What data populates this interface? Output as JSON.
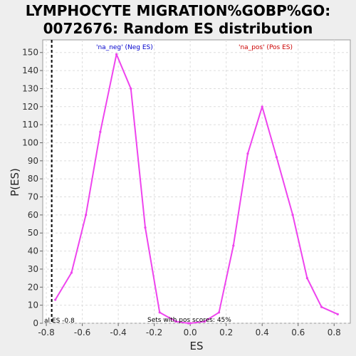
{
  "chart_data": {
    "type": "line",
    "title_lines": [
      "LYMPHOCYTE MIGRATION%GOBP%GO:",
      "0072676: Random ES distribution"
    ],
    "xlabel": "ES",
    "ylabel": "P(ES)",
    "xlim": [
      -0.82,
      0.89
    ],
    "ylim": [
      0,
      157
    ],
    "x_ticks": [
      "-0.8",
      "-0.6",
      "-0.4",
      "-0.2",
      "0.0",
      "0.2",
      "0.4",
      "0.6",
      "0.8"
    ],
    "x_tick_values": [
      -0.8,
      -0.6,
      -0.4,
      -0.2,
      0.0,
      0.2,
      0.4,
      0.6,
      0.8
    ],
    "y_ticks": [
      "0",
      "10",
      "20",
      "30",
      "40",
      "50",
      "60",
      "70",
      "80",
      "90",
      "100",
      "110",
      "120",
      "130",
      "140",
      "150"
    ],
    "y_tick_values": [
      0,
      10,
      20,
      30,
      40,
      50,
      60,
      70,
      80,
      90,
      100,
      110,
      120,
      130,
      140,
      150
    ],
    "grid": true,
    "series": [
      {
        "name": "'na_neg' (Neg ES)",
        "label_color": "#0000cc",
        "color": "#ee44ee",
        "x": [
          -0.75,
          -0.66,
          -0.58,
          -0.5,
          -0.41,
          -0.33,
          -0.25,
          -0.17,
          -0.08,
          -0.01
        ],
        "y": [
          13,
          28,
          60,
          106,
          149,
          130,
          53,
          6,
          1,
          0
        ]
      },
      {
        "name": "'na_pos' (Pos ES)",
        "label_color": "#cc0000",
        "color": "#ee44ee",
        "x": [
          0.0,
          0.08,
          0.16,
          0.24,
          0.32,
          0.4,
          0.48,
          0.57,
          0.65,
          0.73,
          0.82
        ],
        "y": [
          0,
          1,
          6,
          43,
          94,
          120,
          92,
          60,
          25,
          9,
          5
        ]
      }
    ],
    "reference_line": {
      "x": -0.77,
      "style": "dashed",
      "color": "#000000"
    },
    "annotations": {
      "left_bottom": "al ES -0.8",
      "center_bottom": "Sets with pos scores: 45%"
    }
  }
}
